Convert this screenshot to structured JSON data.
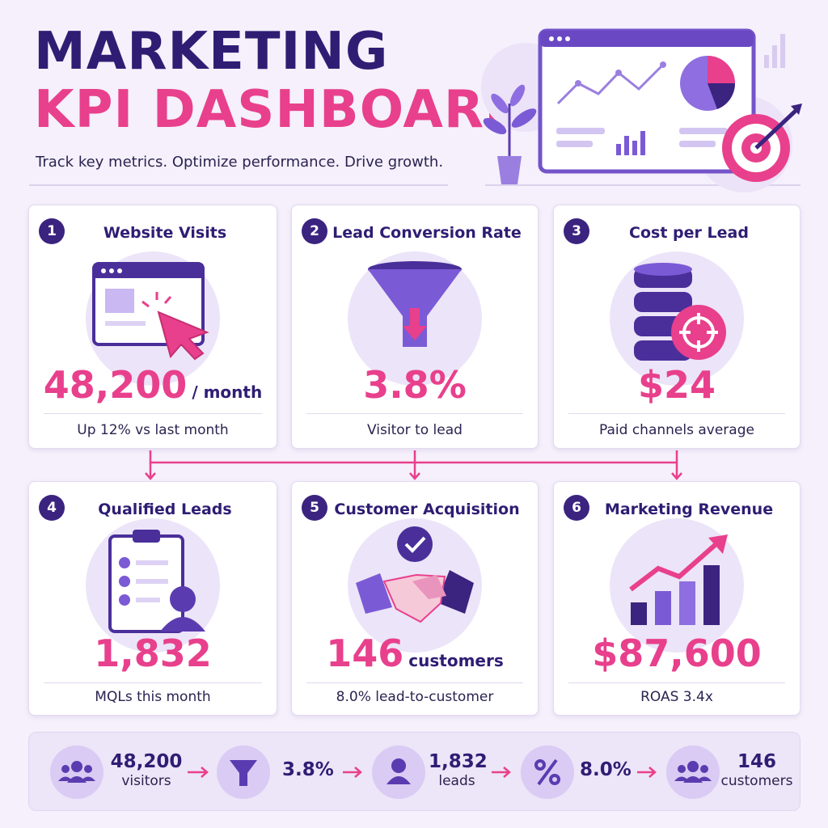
{
  "header": {
    "title_line1": "MARKETING",
    "title_line2": "KPI DASHBOARD",
    "tagline": "Track key metrics. Optimize performance. Drive growth."
  },
  "cards": [
    {
      "number": "1",
      "title": "Website Visits",
      "value": "48,200",
      "unit": "/ month",
      "note": "Up 12% vs last month"
    },
    {
      "number": "2",
      "title": "Lead Conversion Rate",
      "value": "3.8%",
      "note": "Visitor to lead"
    },
    {
      "number": "3",
      "title": "Cost per Lead",
      "value": "$24",
      "note": "Paid channels average"
    },
    {
      "number": "4",
      "title": "Qualified Leads",
      "value": "1,832",
      "note": "MQLs this month"
    },
    {
      "number": "5",
      "title": "Customer Acquisition",
      "value": "146",
      "unit": "customers",
      "note": "8.0% lead-to-customer"
    },
    {
      "number": "6",
      "title": "Marketing Revenue",
      "value": "$87,600",
      "note": "ROAS 3.4x"
    }
  ],
  "funnel": [
    {
      "value": "48,200",
      "label": "visitors"
    },
    {
      "value": "3.8%"
    },
    {
      "value": "1,832",
      "label": "leads"
    },
    {
      "value": "8.0%"
    },
    {
      "value": "146",
      "label": "customers"
    }
  ]
}
